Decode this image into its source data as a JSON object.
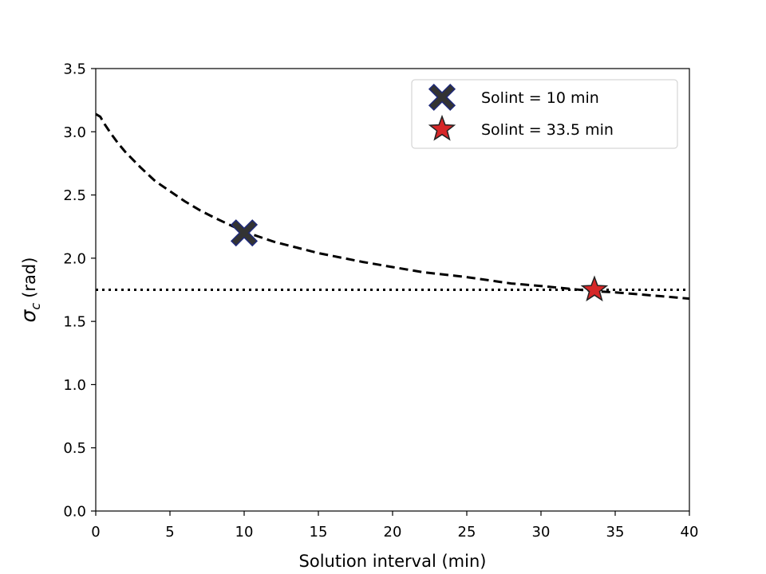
{
  "chart_data": {
    "type": "line",
    "title": "",
    "xlabel": "Solution interval (min)",
    "ylabel_symbol": "σ",
    "ylabel_subscript": "c",
    "ylabel_unit": "(rad)",
    "xlim": [
      0,
      40
    ],
    "ylim": [
      0,
      3.5
    ],
    "xticks": [
      0,
      5,
      10,
      15,
      20,
      25,
      30,
      35,
      40
    ],
    "yticks": [
      0.0,
      0.5,
      1.0,
      1.5,
      2.0,
      2.5,
      3.0,
      3.5
    ],
    "xtick_labels": [
      "0",
      "5",
      "10",
      "15",
      "20",
      "25",
      "30",
      "35",
      "40"
    ],
    "ytick_labels": [
      "0.0",
      "0.5",
      "1.0",
      "1.5",
      "2.0",
      "2.5",
      "3.0",
      "3.5"
    ],
    "grid": false,
    "legend_position": "top-right",
    "curve": {
      "style": "dashed",
      "color": "#000000",
      "x": [
        0.0,
        0.3,
        0.6,
        1.0,
        1.5,
        2.0,
        3.0,
        4.0,
        5.0,
        6.0,
        7.0,
        8.0,
        10.0,
        12.0,
        15.0,
        18.0,
        20.0,
        22.0,
        25.0,
        28.0,
        30.0,
        33.5,
        35.0,
        38.0,
        40.0
      ],
      "y": [
        3.14,
        3.12,
        3.06,
        2.99,
        2.91,
        2.84,
        2.72,
        2.61,
        2.53,
        2.45,
        2.38,
        2.32,
        2.21,
        2.13,
        2.04,
        1.97,
        1.93,
        1.89,
        1.85,
        1.8,
        1.78,
        1.74,
        1.73,
        1.7,
        1.68
      ]
    },
    "threshold": {
      "style": "dotted",
      "color": "#000000",
      "y": 1.75
    },
    "markers": [
      {
        "label": "Solint = 10 min",
        "x": 10,
        "y": 2.2,
        "shape": "X",
        "fill": "#333333",
        "edge": "#1f2a7a"
      },
      {
        "label": "Solint = 33.5 min",
        "x": 33.6,
        "y": 1.75,
        "shape": "star",
        "fill": "#d62728",
        "edge": "#222222"
      }
    ]
  }
}
